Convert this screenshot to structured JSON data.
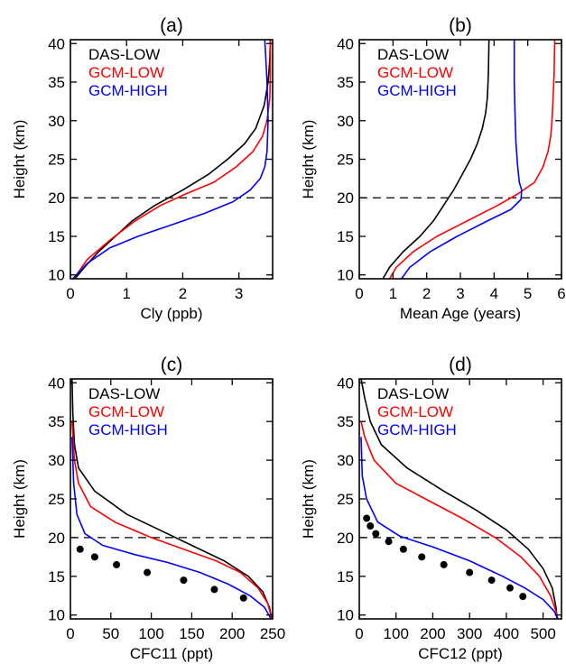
{
  "chart_data": [
    {
      "type": "line",
      "title": "(a)",
      "xlabel": "Cly (ppb)",
      "ylabel": "Height (km)",
      "xlim": [
        0,
        3.6
      ],
      "ylim": [
        9.5,
        40.5
      ],
      "xticks": [
        0,
        1,
        2,
        3
      ],
      "yticks": [
        10,
        15,
        20,
        25,
        30,
        35,
        40
      ],
      "legend": "top-left",
      "reference_line": {
        "y": 20,
        "style": "dashed"
      },
      "series": [
        {
          "name": "DAS-LOW",
          "color": "#000000",
          "points": [
            [
              0.08,
              9.5
            ],
            [
              0.25,
              11
            ],
            [
              0.5,
              13
            ],
            [
              0.8,
              15
            ],
            [
              1.1,
              17
            ],
            [
              1.5,
              19
            ],
            [
              2.0,
              21
            ],
            [
              2.45,
              23
            ],
            [
              2.8,
              25
            ],
            [
              3.1,
              27
            ],
            [
              3.3,
              29
            ],
            [
              3.45,
              32
            ],
            [
              3.52,
              35
            ],
            [
              3.55,
              38
            ],
            [
              3.56,
              40.5
            ]
          ]
        },
        {
          "name": "GCM-LOW",
          "color": "#ff0000",
          "points": [
            [
              0.06,
              9.5
            ],
            [
              0.3,
              12
            ],
            [
              0.7,
              14.5
            ],
            [
              1.15,
              17
            ],
            [
              1.6,
              19
            ],
            [
              2.05,
              20.5
            ],
            [
              2.55,
              22
            ],
            [
              2.95,
              24
            ],
            [
              3.25,
              26
            ],
            [
              3.42,
              28
            ],
            [
              3.5,
              30
            ],
            [
              3.55,
              33
            ],
            [
              3.56,
              36
            ],
            [
              3.56,
              40.5
            ]
          ]
        },
        {
          "name": "GCM-HIGH",
          "color": "#0000ff",
          "points": [
            [
              0.04,
              9.5
            ],
            [
              0.3,
              11.5
            ],
            [
              0.7,
              13.5
            ],
            [
              1.2,
              15
            ],
            [
              1.8,
              16.5
            ],
            [
              2.4,
              18
            ],
            [
              2.9,
              19.5
            ],
            [
              3.2,
              21
            ],
            [
              3.38,
              22.5
            ],
            [
              3.46,
              24
            ],
            [
              3.5,
              26
            ],
            [
              3.52,
              30
            ],
            [
              3.5,
              35
            ],
            [
              3.48,
              38
            ],
            [
              3.46,
              40.5
            ]
          ]
        }
      ]
    },
    {
      "type": "line",
      "title": "(b)",
      "xlabel": "Mean Age (years)",
      "ylabel": "Height (km)",
      "xlim": [
        0,
        6
      ],
      "ylim": [
        9.5,
        40.5
      ],
      "xticks": [
        0,
        1,
        2,
        3,
        4,
        5,
        6
      ],
      "yticks": [
        10,
        15,
        20,
        25,
        30,
        35,
        40
      ],
      "legend": "top-left",
      "reference_line": {
        "y": 20,
        "style": "dashed"
      },
      "series": [
        {
          "name": "DAS-LOW",
          "color": "#000000",
          "points": [
            [
              0.7,
              9.5
            ],
            [
              0.9,
              11
            ],
            [
              1.3,
              13
            ],
            [
              1.8,
              15
            ],
            [
              2.2,
              17
            ],
            [
              2.5,
              19
            ],
            [
              2.8,
              21
            ],
            [
              3.05,
              23
            ],
            [
              3.3,
              25
            ],
            [
              3.5,
              27
            ],
            [
              3.65,
              29
            ],
            [
              3.75,
              31
            ],
            [
              3.8,
              33
            ],
            [
              3.83,
              36
            ],
            [
              3.85,
              40.5
            ]
          ]
        },
        {
          "name": "GCM-LOW",
          "color": "#ff0000",
          "points": [
            [
              0.9,
              9.5
            ],
            [
              1.1,
              11
            ],
            [
              1.6,
              13
            ],
            [
              2.3,
              15
            ],
            [
              3.2,
              17
            ],
            [
              4.1,
              19
            ],
            [
              4.7,
              20.5
            ],
            [
              5.2,
              22
            ],
            [
              5.45,
              24
            ],
            [
              5.6,
              26
            ],
            [
              5.68,
              28
            ],
            [
              5.72,
              30
            ],
            [
              5.75,
              33
            ],
            [
              5.78,
              36
            ],
            [
              5.8,
              40.5
            ]
          ]
        },
        {
          "name": "GCM-HIGH",
          "color": "#0000ff",
          "points": [
            [
              1.25,
              9.5
            ],
            [
              1.5,
              11
            ],
            [
              2.1,
              13
            ],
            [
              2.9,
              15
            ],
            [
              3.8,
              17
            ],
            [
              4.5,
              18.5
            ],
            [
              4.8,
              19.8
            ],
            [
              4.82,
              21
            ],
            [
              4.75,
              22
            ],
            [
              4.7,
              24
            ],
            [
              4.65,
              27
            ],
            [
              4.62,
              31
            ],
            [
              4.6,
              35
            ],
            [
              4.6,
              38
            ],
            [
              4.6,
              40.5
            ]
          ]
        }
      ]
    },
    {
      "type": "line",
      "title": "(c)",
      "xlabel": "CFC11 (ppt)",
      "ylabel": "Height (km)",
      "xlim": [
        0,
        250
      ],
      "ylim": [
        9.5,
        40.5
      ],
      "xticks": [
        0,
        50,
        100,
        150,
        200,
        250
      ],
      "yticks": [
        10,
        15,
        20,
        25,
        30,
        35,
        40
      ],
      "legend": "top-right",
      "reference_line": {
        "y": 20,
        "style": "dashed"
      },
      "series": [
        {
          "name": "DAS-LOW",
          "color": "#000000",
          "points": [
            [
              2,
              40.5
            ],
            [
              3,
              36
            ],
            [
              5,
              32
            ],
            [
              10,
              29
            ],
            [
              30,
              26
            ],
            [
              70,
              23
            ],
            [
              110,
              21
            ],
            [
              150,
              19
            ],
            [
              190,
              17
            ],
            [
              220,
              15
            ],
            [
              238,
              13
            ],
            [
              246,
              11
            ],
            [
              249,
              9.5
            ]
          ]
        },
        {
          "name": "GCM-LOW",
          "color": "#ff0000",
          "points": [
            [
              2,
              35
            ],
            [
              5,
              30
            ],
            [
              10,
              27
            ],
            [
              25,
              24
            ],
            [
              55,
              22
            ],
            [
              100,
              20
            ],
            [
              140,
              18.5
            ],
            [
              180,
              17
            ],
            [
              210,
              15.5
            ],
            [
              232,
              13.5
            ],
            [
              244,
              11.5
            ],
            [
              249,
              9.5
            ]
          ]
        },
        {
          "name": "GCM-HIGH",
          "color": "#0000ff",
          "points": [
            [
              2,
              33
            ],
            [
              4,
              27
            ],
            [
              8,
              23
            ],
            [
              18,
              20.5
            ],
            [
              40,
              19
            ],
            [
              80,
              17.8
            ],
            [
              120,
              16.8
            ],
            [
              160,
              15.5
            ],
            [
              195,
              14
            ],
            [
              222,
              12.5
            ],
            [
              240,
              11
            ],
            [
              248,
              9.5
            ]
          ]
        },
        {
          "name": "",
          "kind": "scatter",
          "color": "#000000",
          "points": [
            [
              12,
              18.5
            ],
            [
              30,
              17.5
            ],
            [
              57,
              16.5
            ],
            [
              95,
              15.5
            ],
            [
              140,
              14.5
            ],
            [
              178,
              13.3
            ],
            [
              214,
              12.2
            ]
          ]
        }
      ]
    },
    {
      "type": "line",
      "title": "(d)",
      "xlabel": "CFC12 (ppt)",
      "ylabel": "Height (km)",
      "xlim": [
        0,
        550
      ],
      "ylim": [
        9.5,
        40.5
      ],
      "xticks": [
        0,
        100,
        200,
        300,
        400,
        500
      ],
      "yticks": [
        10,
        15,
        20,
        25,
        30,
        35,
        40
      ],
      "legend": "top-right",
      "reference_line": {
        "y": 20,
        "style": "dashed"
      },
      "series": [
        {
          "name": "DAS-LOW",
          "color": "#000000",
          "points": [
            [
              5,
              40.5
            ],
            [
              15,
              38
            ],
            [
              30,
              35
            ],
            [
              60,
              32
            ],
            [
              130,
              29
            ],
            [
              230,
              26
            ],
            [
              320,
              23.5
            ],
            [
              400,
              21
            ],
            [
              460,
              18.5
            ],
            [
              500,
              16
            ],
            [
              525,
              13.5
            ],
            [
              535,
              11
            ],
            [
              538,
              9.5
            ]
          ]
        },
        {
          "name": "GCM-LOW",
          "color": "#ff0000",
          "points": [
            [
              5,
              35
            ],
            [
              15,
              33
            ],
            [
              40,
              30
            ],
            [
              100,
              27
            ],
            [
              180,
              25
            ],
            [
              280,
              22.5
            ],
            [
              370,
              20
            ],
            [
              440,
              17.5
            ],
            [
              490,
              15
            ],
            [
              520,
              12.5
            ],
            [
              535,
              10.5
            ],
            [
              540,
              9.5
            ]
          ]
        },
        {
          "name": "GCM-HIGH",
          "color": "#0000ff",
          "points": [
            [
              5,
              33
            ],
            [
              8,
              28
            ],
            [
              20,
              25
            ],
            [
              50,
              22
            ],
            [
              110,
              20.2
            ],
            [
              200,
              18.8
            ],
            [
              300,
              17
            ],
            [
              390,
              15
            ],
            [
              450,
              13.5
            ],
            [
              500,
              12
            ],
            [
              530,
              10.5
            ],
            [
              540,
              9.5
            ]
          ]
        },
        {
          "name": "",
          "kind": "scatter",
          "color": "#000000",
          "points": [
            [
              20,
              22.5
            ],
            [
              30,
              21.5
            ],
            [
              45,
              20.5
            ],
            [
              80,
              19.5
            ],
            [
              120,
              18.5
            ],
            [
              170,
              17.5
            ],
            [
              230,
              16.5
            ],
            [
              300,
              15.5
            ],
            [
              360,
              14.5
            ],
            [
              410,
              13.5
            ],
            [
              445,
              12.4
            ]
          ]
        }
      ]
    }
  ]
}
